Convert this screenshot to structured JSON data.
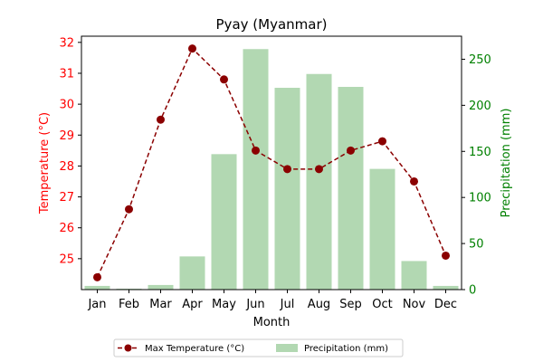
{
  "chart_data": {
    "type": "bar",
    "title": "Pyay (Myanmar)",
    "xlabel": "Month",
    "ylabel_left": "Temperature (°C)",
    "ylabel_right": "Precipitation (mm)",
    "categories": [
      "Jan",
      "Feb",
      "Mar",
      "Apr",
      "May",
      "Jun",
      "Jul",
      "Aug",
      "Sep",
      "Oct",
      "Nov",
      "Dec"
    ],
    "series": [
      {
        "name": "Max Temperature (°C)",
        "type": "line",
        "axis": "left",
        "color": "#8b0000",
        "values": [
          24.4,
          26.6,
          29.5,
          31.8,
          30.8,
          28.5,
          27.9,
          27.9,
          28.5,
          28.8,
          27.5,
          25.1
        ]
      },
      {
        "name": "Precipitation (mm)",
        "type": "bar",
        "axis": "right",
        "color": "#b2d8b2",
        "values": [
          4,
          1,
          5,
          36,
          147,
          261,
          219,
          234,
          220,
          131,
          31,
          4
        ]
      }
    ],
    "ylim_left": [
      24.0,
      32.2
    ],
    "yticks_left": [
      25,
      26,
      27,
      28,
      29,
      30,
      31,
      32
    ],
    "ylim_right": [
      0,
      275
    ],
    "yticks_right": [
      0,
      50,
      100,
      150,
      200,
      250
    ],
    "left_axis_color": "#ff0000",
    "right_axis_color": "#008000",
    "grid": false,
    "legend_position": "bottom-center"
  }
}
